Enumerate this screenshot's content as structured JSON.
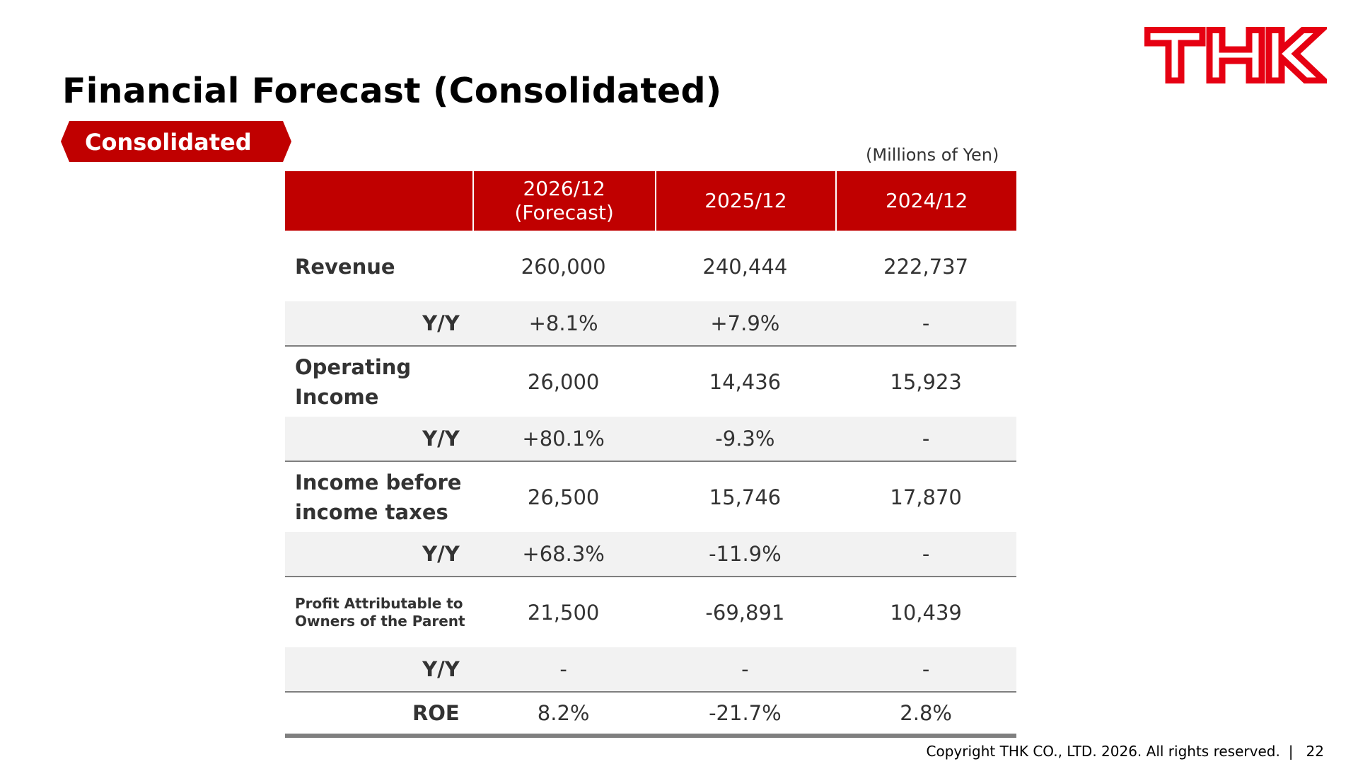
{
  "title": "Financial Forecast (Consolidated)",
  "tag": "Consolidated",
  "unit_note": "(Millions of Yen)",
  "logo_text": "THK",
  "brand_color": "#c00000",
  "table": {
    "headers": [
      "",
      "2026/12\n(Forecast)",
      "2025/12",
      "2024/12"
    ],
    "header_lines": [
      [
        "2026/12",
        "(Forecast)"
      ],
      [
        "2025/12"
      ],
      [
        "2024/12"
      ]
    ],
    "rows": [
      {
        "label": "Revenue",
        "values": [
          "260,000",
          "240,444",
          "222,737"
        ]
      },
      {
        "label": "Y/Y",
        "values": [
          "+8.1%",
          "+7.9%",
          "-"
        ]
      },
      {
        "label_lines": [
          "Operating",
          "Income"
        ],
        "values": [
          "26,000",
          "14,436",
          "15,923"
        ]
      },
      {
        "label": "Y/Y",
        "values": [
          "+80.1%",
          "-9.3%",
          "-"
        ]
      },
      {
        "label_lines": [
          "Income before",
          "income taxes"
        ],
        "values": [
          "26,500",
          "15,746",
          "17,870"
        ]
      },
      {
        "label": "Y/Y",
        "values": [
          "+68.3%",
          "-11.9%",
          "-"
        ]
      },
      {
        "label_lines": [
          "Profit Attributable to",
          "Owners of the Parent"
        ],
        "values": [
          "21,500",
          "-69,891",
          "10,439"
        ]
      },
      {
        "label": "Y/Y",
        "values": [
          "-",
          "-",
          "-"
        ]
      },
      {
        "label": "ROE",
        "values": [
          "8.2%",
          "-21.7%",
          "2.8%"
        ]
      }
    ]
  },
  "footer": {
    "copyright": "Copyright THK CO., LTD. 2026. All rights reserved.",
    "separator": "|",
    "page_number": "22"
  }
}
